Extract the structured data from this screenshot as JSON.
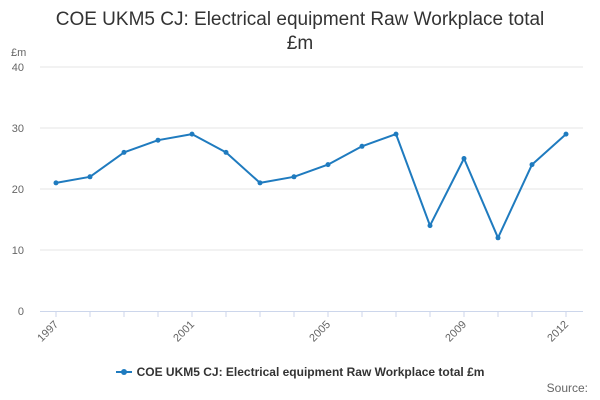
{
  "title_lines": [
    "COE UKM5 CJ: Electrical equipment Raw Workplace total",
    "£m"
  ],
  "source_label": "Source:",
  "colors": {
    "series": "#1f7bbf",
    "grid": "#e6e6e6",
    "axis": "#ccd6eb",
    "tick_text": "#666666"
  },
  "chart_data": {
    "type": "line",
    "title": "COE UKM5 CJ: Electrical equipment Raw Workplace total £m",
    "xlabel": "",
    "ylabel": "£m",
    "ylim": [
      0,
      40
    ],
    "yticks": [
      0,
      10,
      20,
      30,
      40
    ],
    "xticks": [
      1997,
      2001,
      2005,
      2009,
      2012
    ],
    "xlim": [
      1997,
      2012
    ],
    "grid": true,
    "legend_position": "bottom",
    "x": [
      1997,
      1998,
      1999,
      2000,
      2001,
      2002,
      2003,
      2004,
      2005,
      2006,
      2007,
      2008,
      2009,
      2010,
      2011,
      2012
    ],
    "series": [
      {
        "name": "COE UKM5 CJ: Electrical equipment Raw Workplace total £m",
        "values": [
          21,
          22,
          26,
          28,
          29,
          26,
          21,
          22,
          24,
          27,
          29,
          14,
          25,
          12,
          24,
          29
        ]
      }
    ]
  }
}
